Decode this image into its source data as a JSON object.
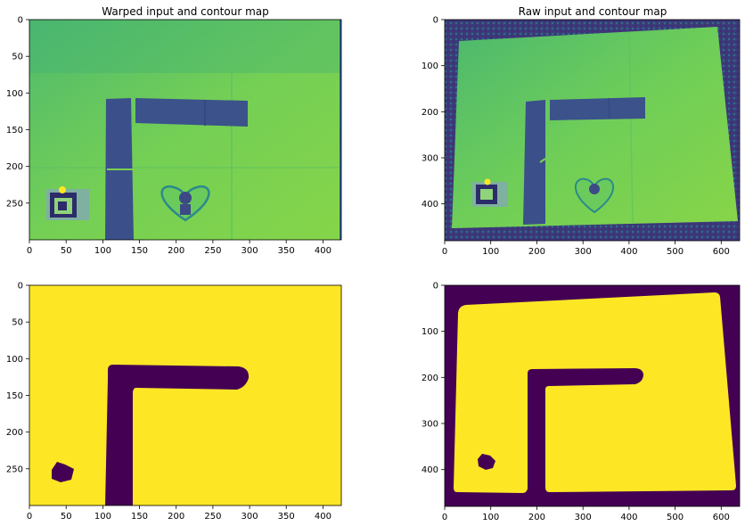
{
  "chart_data": [
    {
      "type": "heatmap",
      "title": "Warped input and contour map",
      "content": "grayscale photo rendered with viridis colormap: green board with dark tape L-shape, robot marker and heart sticker",
      "xlim": [
        0,
        425
      ],
      "ylim": [
        300,
        0
      ],
      "xticks": [
        0,
        50,
        100,
        150,
        200,
        250,
        300,
        350,
        400
      ],
      "yticks": [
        0,
        50,
        100,
        150,
        200,
        250
      ]
    },
    {
      "type": "heatmap",
      "title": "Raw input and contour map",
      "content": "raw camera image rendered with viridis colormap: tilted green board on dark carpet",
      "xlim": [
        0,
        640
      ],
      "ylim": [
        480,
        0
      ],
      "xticks": [
        0,
        100,
        200,
        300,
        400,
        500,
        600
      ],
      "yticks": [
        0,
        100,
        200,
        300,
        400
      ]
    },
    {
      "type": "heatmap",
      "title": "",
      "content": "binary contour map (warped): yellow free space, purple L-shaped obstacle and small blob",
      "xlim": [
        0,
        425
      ],
      "ylim": [
        300,
        0
      ],
      "xticks": [
        0,
        50,
        100,
        150,
        200,
        250,
        300,
        350,
        400
      ],
      "yticks": [
        0,
        50,
        100,
        150,
        200,
        250
      ]
    },
    {
      "type": "heatmap",
      "title": "",
      "content": "binary contour map (raw): yellow board region with purple background, L obstacle and blob",
      "xlim": [
        0,
        640
      ],
      "ylim": [
        480,
        0
      ],
      "xticks": [
        0,
        100,
        200,
        300,
        400,
        500,
        600
      ],
      "yticks": [
        0,
        100,
        200,
        300,
        400
      ]
    }
  ],
  "colors": {
    "viridis_yellow": "#fde725",
    "viridis_purple": "#440154",
    "board_green": "#6cce5a",
    "board_green_light": "#7ad151",
    "tape_blue": "#3b4f8a",
    "carpet_dark": "#3e3b7a"
  }
}
